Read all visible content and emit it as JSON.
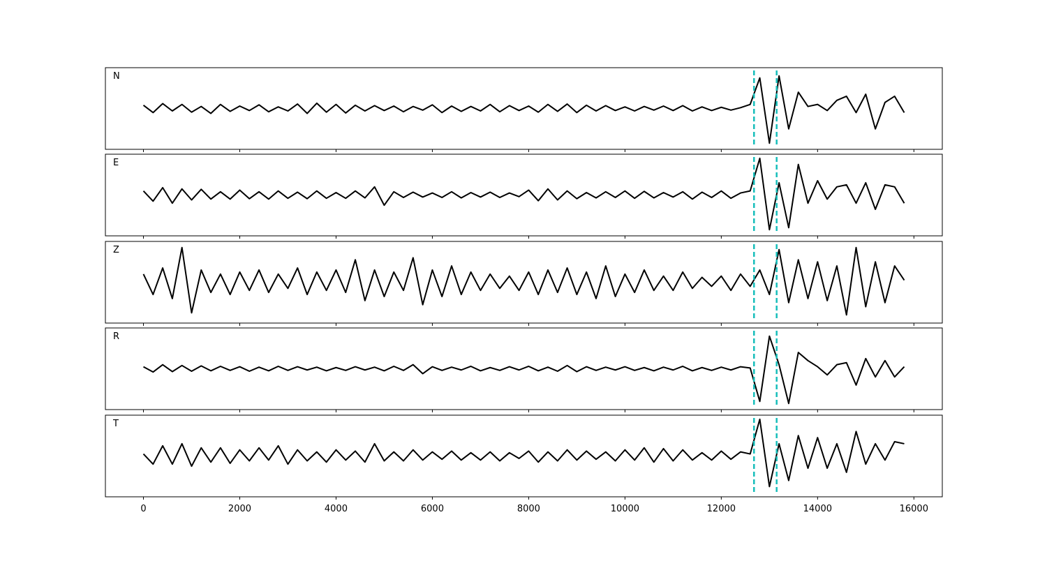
{
  "chart_data": {
    "type": "line",
    "layout": "stacked-panels",
    "x": [
      0,
      200,
      400,
      600,
      800,
      1000,
      1200,
      1400,
      1600,
      1800,
      2000,
      2200,
      2400,
      2600,
      2800,
      3000,
      3200,
      3400,
      3600,
      3800,
      4000,
      4200,
      4400,
      4600,
      4800,
      5000,
      5200,
      5400,
      5600,
      5800,
      6000,
      6200,
      6400,
      6600,
      6800,
      7000,
      7200,
      7400,
      7600,
      7800,
      8000,
      8200,
      8400,
      8600,
      8800,
      9000,
      9200,
      9400,
      9600,
      9800,
      10000,
      10200,
      10400,
      10600,
      10800,
      11000,
      11200,
      11400,
      11600,
      11800,
      12000,
      12200,
      12400,
      12600,
      12800,
      13000,
      13200,
      13400,
      13600,
      13800,
      14000,
      14200,
      14400,
      14600,
      14800,
      15000,
      15200,
      15400,
      15600,
      15800
    ],
    "series": [
      {
        "name": "N",
        "color": "#000000",
        "values": [
          0.08,
          -0.1,
          0.12,
          -0.06,
          0.1,
          -0.09,
          0.05,
          -0.12,
          0.1,
          -0.07,
          0.06,
          -0.05,
          0.09,
          -0.08,
          0.04,
          -0.06,
          0.11,
          -0.12,
          0.13,
          -0.09,
          0.1,
          -0.11,
          0.08,
          -0.06,
          0.07,
          -0.05,
          0.06,
          -0.08,
          0.05,
          -0.04,
          0.09,
          -0.1,
          0.06,
          -0.07,
          0.05,
          -0.06,
          0.1,
          -0.08,
          0.07,
          -0.05,
          0.06,
          -0.09,
          0.1,
          -0.07,
          0.11,
          -0.1,
          0.08,
          -0.06,
          0.07,
          -0.05,
          0.04,
          -0.06,
          0.05,
          -0.04,
          0.06,
          -0.05,
          0.07,
          -0.06,
          0.04,
          -0.05,
          0.03,
          -0.04,
          0.02,
          0.1,
          0.75,
          -0.85,
          0.8,
          -0.5,
          0.4,
          0.05,
          0.1,
          -0.05,
          0.2,
          0.3,
          -0.1,
          0.35,
          -0.5,
          0.15,
          0.3,
          -0.1
        ]
      },
      {
        "name": "E",
        "color": "#000000",
        "values": [
          0.1,
          -0.15,
          0.18,
          -0.2,
          0.15,
          -0.12,
          0.14,
          -0.1,
          0.08,
          -0.1,
          0.12,
          -0.09,
          0.08,
          -0.1,
          0.1,
          -0.08,
          0.07,
          -0.09,
          0.1,
          -0.08,
          0.06,
          -0.08,
          0.1,
          -0.07,
          0.2,
          -0.25,
          0.08,
          -0.06,
          0.07,
          -0.05,
          0.05,
          -0.06,
          0.08,
          -0.07,
          0.06,
          -0.05,
          0.07,
          -0.06,
          0.05,
          -0.04,
          0.12,
          -0.14,
          0.15,
          -0.12,
          0.1,
          -0.09,
          0.06,
          -0.07,
          0.08,
          -0.06,
          0.1,
          -0.08,
          0.09,
          -0.07,
          0.06,
          -0.05,
          0.08,
          -0.1,
          0.07,
          -0.06,
          0.1,
          -0.08,
          0.05,
          0.1,
          0.9,
          -0.85,
          0.3,
          -0.8,
          0.75,
          -0.2,
          0.35,
          -0.1,
          0.2,
          0.25,
          -0.2,
          0.3,
          -0.35,
          0.25,
          0.2,
          -0.2
        ]
      },
      {
        "name": "Z",
        "color": "#000000",
        "values": [
          0.2,
          -0.3,
          0.35,
          -0.4,
          0.85,
          -0.75,
          0.3,
          -0.25,
          0.2,
          -0.3,
          0.25,
          -0.2,
          0.3,
          -0.25,
          0.2,
          -0.15,
          0.35,
          -0.3,
          0.25,
          -0.2,
          0.3,
          -0.25,
          0.55,
          -0.45,
          0.3,
          -0.35,
          0.25,
          -0.2,
          0.6,
          -0.55,
          0.3,
          -0.35,
          0.4,
          -0.3,
          0.25,
          -0.2,
          0.2,
          -0.15,
          0.15,
          -0.2,
          0.25,
          -0.3,
          0.3,
          -0.25,
          0.35,
          -0.3,
          0.25,
          -0.4,
          0.4,
          -0.35,
          0.2,
          -0.25,
          0.3,
          -0.2,
          0.15,
          -0.2,
          0.25,
          -0.15,
          0.12,
          -0.1,
          0.15,
          -0.2,
          0.2,
          -0.1,
          0.3,
          -0.3,
          0.8,
          -0.5,
          0.55,
          -0.4,
          0.5,
          -0.45,
          0.4,
          -0.8,
          0.85,
          -0.6,
          0.5,
          -0.5,
          0.4,
          0.05
        ]
      },
      {
        "name": "R",
        "color": "#000000",
        "values": [
          0.05,
          -0.08,
          0.1,
          -0.07,
          0.08,
          -0.06,
          0.07,
          -0.05,
          0.06,
          -0.04,
          0.05,
          -0.06,
          0.04,
          -0.05,
          0.06,
          -0.04,
          0.05,
          -0.03,
          0.04,
          -0.05,
          0.03,
          -0.04,
          0.05,
          -0.03,
          0.04,
          -0.05,
          0.06,
          -0.04,
          0.1,
          -0.12,
          0.05,
          -0.04,
          0.04,
          -0.03,
          0.06,
          -0.05,
          0.03,
          -0.04,
          0.05,
          -0.03,
          0.06,
          -0.05,
          0.04,
          -0.06,
          0.08,
          -0.07,
          0.05,
          -0.04,
          0.04,
          -0.03,
          0.05,
          -0.04,
          0.03,
          -0.05,
          0.04,
          -0.03,
          0.06,
          -0.05,
          0.03,
          -0.04,
          0.04,
          -0.03,
          0.05,
          0.02,
          -0.8,
          0.8,
          0.1,
          -0.85,
          0.4,
          0.2,
          0.05,
          -0.15,
          0.1,
          0.15,
          -0.4,
          0.25,
          -0.2,
          0.2,
          -0.2,
          0.05
        ]
      },
      {
        "name": "T",
        "color": "#000000",
        "values": [
          0.05,
          -0.2,
          0.25,
          -0.2,
          0.3,
          -0.25,
          0.2,
          -0.15,
          0.2,
          -0.18,
          0.15,
          -0.12,
          0.2,
          -0.1,
          0.25,
          -0.2,
          0.15,
          -0.12,
          0.1,
          -0.15,
          0.15,
          -0.1,
          0.12,
          -0.15,
          0.3,
          -0.12,
          0.1,
          -0.12,
          0.15,
          -0.1,
          0.1,
          -0.08,
          0.12,
          -0.1,
          0.08,
          -0.1,
          0.1,
          -0.12,
          0.08,
          -0.06,
          0.12,
          -0.15,
          0.1,
          -0.12,
          0.15,
          -0.1,
          0.12,
          -0.08,
          0.1,
          -0.12,
          0.15,
          -0.1,
          0.2,
          -0.15,
          0.18,
          -0.12,
          0.15,
          -0.1,
          0.08,
          -0.1,
          0.12,
          -0.08,
          0.1,
          0.05,
          0.9,
          -0.75,
          0.3,
          -0.6,
          0.5,
          -0.3,
          0.45,
          -0.3,
          0.3,
          -0.4,
          0.6,
          -0.2,
          0.3,
          -0.1,
          0.35,
          0.3
        ]
      }
    ],
    "vlines": [
      12680,
      13150
    ],
    "vline_color": "#17bebb",
    "xlim": [
      -790,
      16590
    ],
    "xticks": [
      0,
      2000,
      4000,
      6000,
      8000,
      10000,
      12000,
      14000,
      16000
    ],
    "ylim": [
      -1,
      1
    ]
  }
}
